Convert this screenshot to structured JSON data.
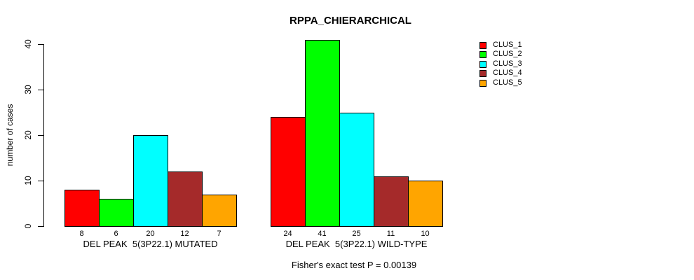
{
  "chart_data": {
    "type": "bar",
    "title": "RPPA_CHIERARCHICAL",
    "ylabel": "number of cases",
    "xlabel": "",
    "ylim": [
      0,
      41
    ],
    "yticks": [
      0,
      10,
      20,
      30,
      40
    ],
    "grid": false,
    "bar_value_labels": true,
    "legend_position": "right",
    "categories": [
      "DEL PEAK  5(3P22.1) MUTATED",
      "DEL PEAK  5(3P22.1) WILD-TYPE"
    ],
    "series": [
      {
        "name": "CLUS_1",
        "color": "#ff0000",
        "values": [
          8,
          24
        ]
      },
      {
        "name": "CLUS_2",
        "color": "#00ff00",
        "values": [
          6,
          41
        ]
      },
      {
        "name": "CLUS_3",
        "color": "#00ffff",
        "values": [
          20,
          25
        ]
      },
      {
        "name": "CLUS_4",
        "color": "#a52a2a",
        "values": [
          12,
          11
        ]
      },
      {
        "name": "CLUS_5",
        "color": "#ffa500",
        "values": [
          7,
          10
        ]
      }
    ],
    "annotation": "Fisher's exact test P = 0.00139"
  }
}
